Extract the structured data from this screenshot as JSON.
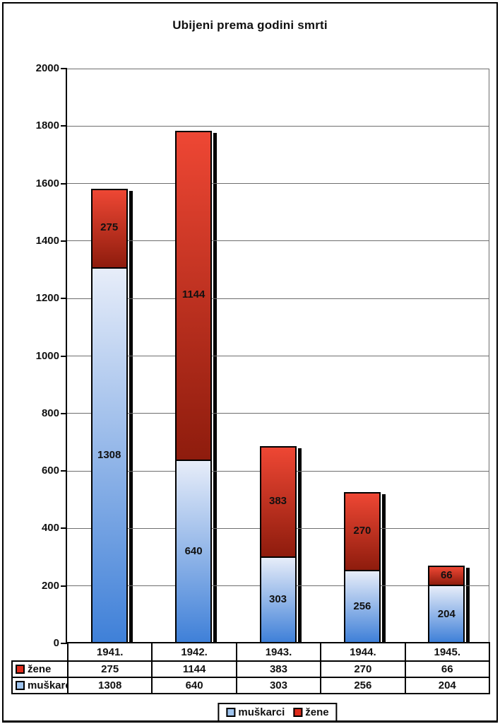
{
  "chart_data": {
    "type": "bar",
    "stacked": true,
    "title": "Ubijeni prema godini smrti",
    "categories": [
      "1941.",
      "1942.",
      "1943.",
      "1944.",
      "1945."
    ],
    "series": [
      {
        "name": "muškarci",
        "values": [
          1308,
          640,
          303,
          256,
          204
        ]
      },
      {
        "name": "žene",
        "values": [
          275,
          1144,
          383,
          270,
          66
        ]
      }
    ],
    "stack_order_bottom_to_top": [
      "muškarci",
      "žene"
    ],
    "ylim": [
      0,
      2000
    ],
    "ytick_step": 200,
    "grid": true,
    "data_labels": true,
    "legend_position": "bottom",
    "legend_order": [
      "muškarci",
      "žene"
    ],
    "table_row_order": [
      "žene",
      "muškarci"
    ]
  },
  "colors": {
    "muskarci_gradient_top": "#e7edf9",
    "muskarci_gradient_bottom": "#3f80d8",
    "zene_gradient_top": "#ee4734",
    "zene_gradient_bottom": "#8e1c0d",
    "muskarci_marker": "#9fc4ee",
    "zene_marker": "#df2b1b",
    "grid": "#6e6e6e",
    "axis": "#000000",
    "shadow": "#000000",
    "text": "#111111",
    "background": "#ffffff"
  }
}
